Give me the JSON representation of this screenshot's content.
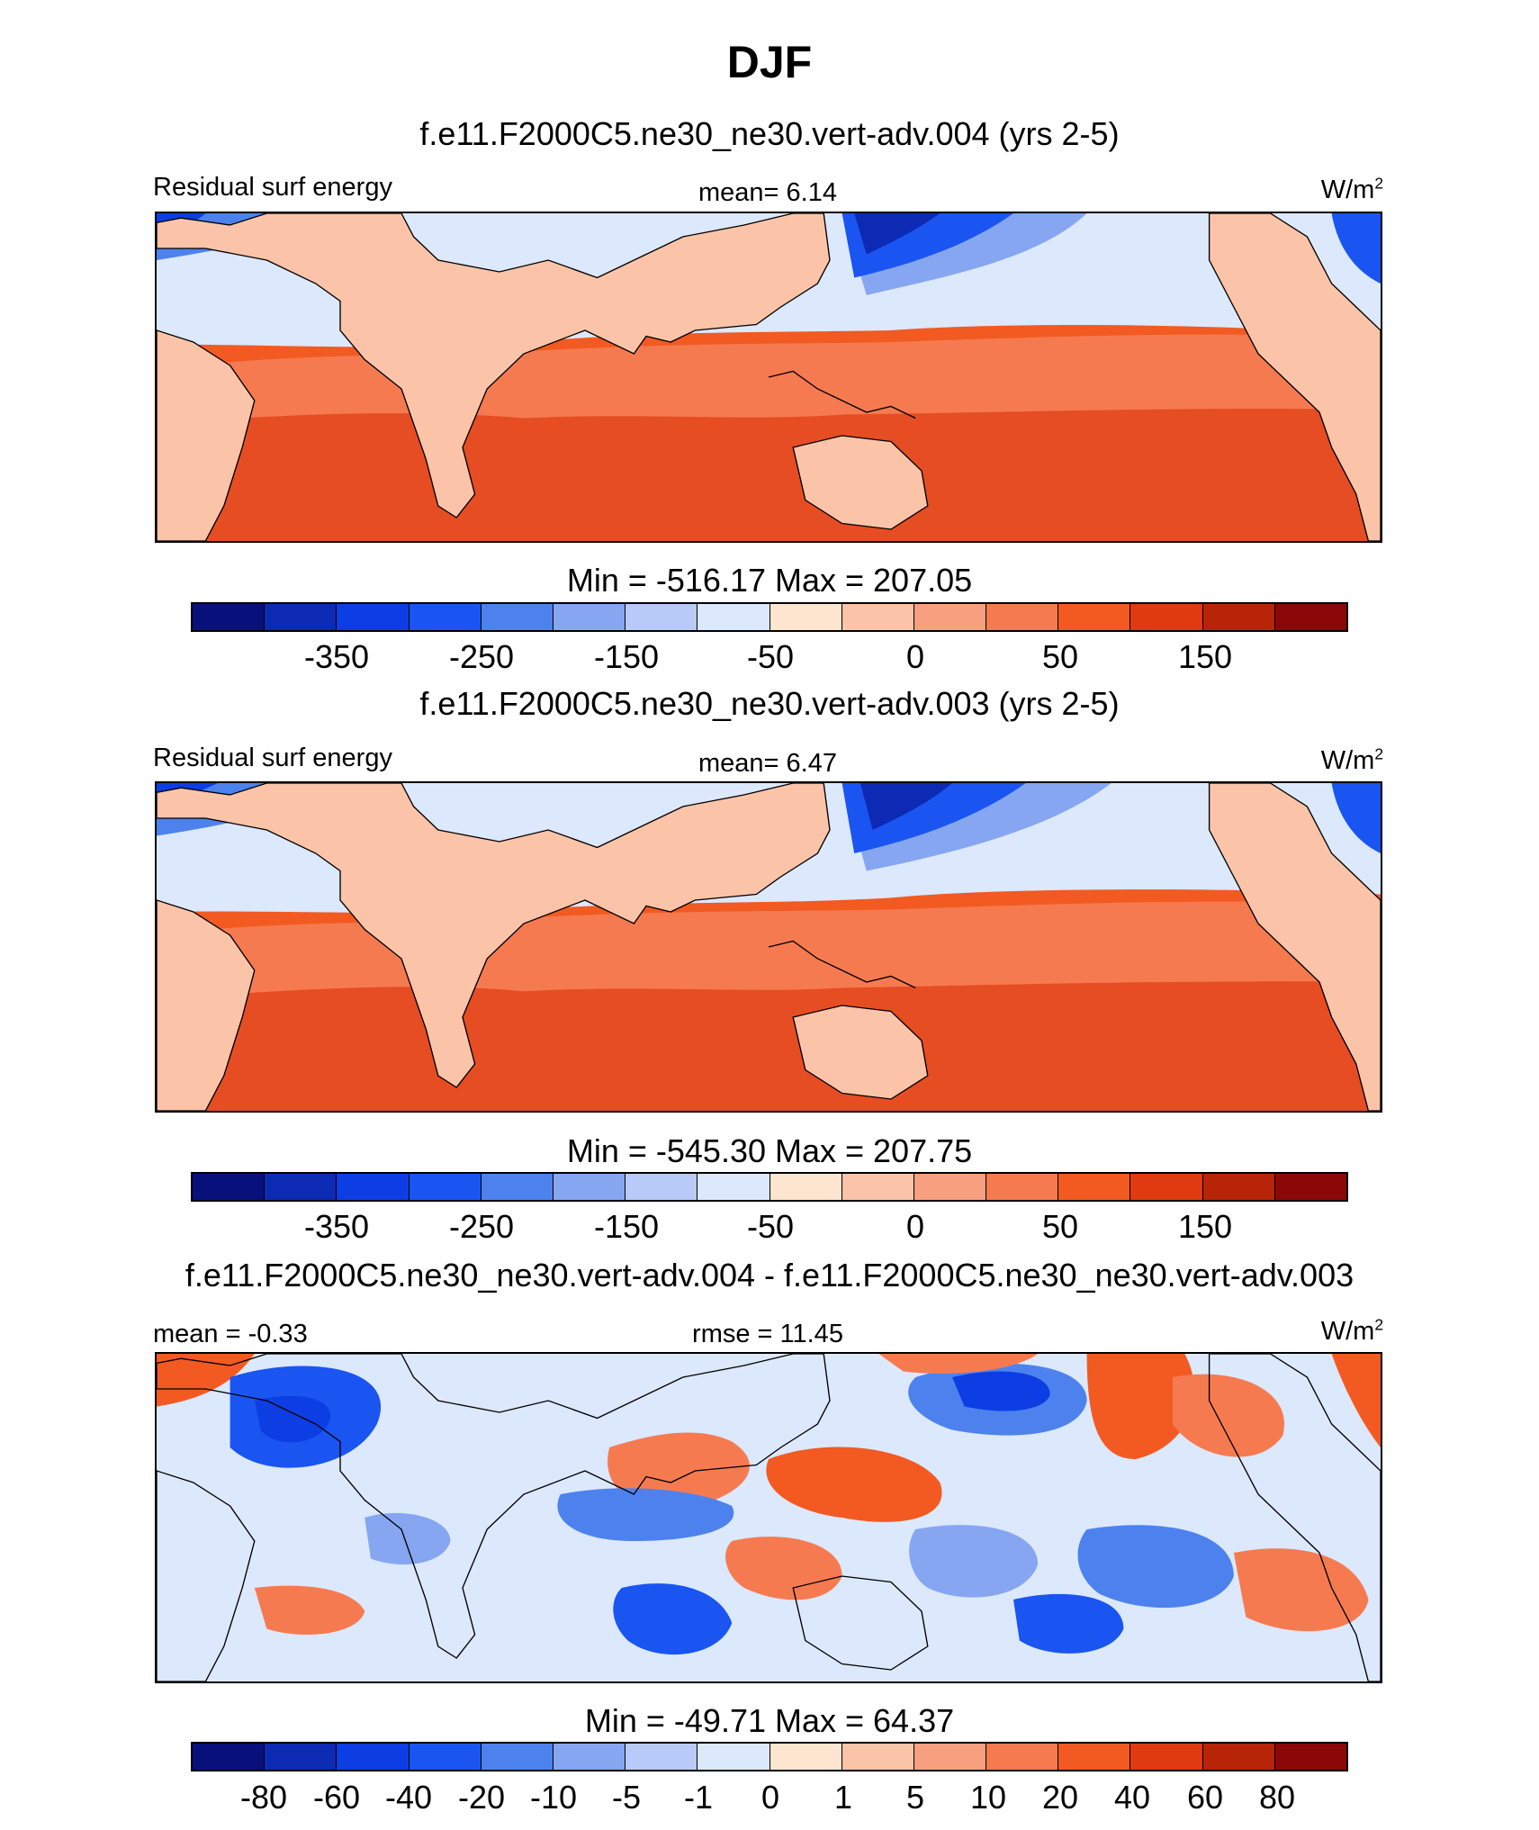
{
  "title": "DJF",
  "colors": [
    "#08107c",
    "#0c2ab4",
    "#0c3ee4",
    "#1a55f2",
    "#4d82ee",
    "#86a6f2",
    "#b8cbf8",
    "#dce8fc",
    "#fde5d0",
    "#fbc4a8",
    "#f7a080",
    "#f67a50",
    "#f25a22",
    "#df3a10",
    "#b82408",
    "#8c0808"
  ],
  "panels": [
    {
      "case_title": "f.e11.F2000C5.ne30_ne30.vert-adv.004 (yrs 2-5)",
      "left_label": "Residual surf energy",
      "center_label": "mean=   6.14",
      "units_base": "W/m",
      "units_exp": "2",
      "minmax": "Min = -516.17 Max = 207.05",
      "ticks": [
        "-350",
        "-250",
        "-150",
        "-50",
        "0",
        "50",
        "150"
      ]
    },
    {
      "case_title": "f.e11.F2000C5.ne30_ne30.vert-adv.003 (yrs 2-5)",
      "left_label": "Residual surf energy",
      "center_label": "mean=   6.47",
      "units_base": "W/m",
      "units_exp": "2",
      "minmax": "Min = -545.30 Max = 207.75",
      "ticks": [
        "-350",
        "-250",
        "-150",
        "-50",
        "0",
        "50",
        "150"
      ]
    },
    {
      "case_title": "f.e11.F2000C5.ne30_ne30.vert-adv.004 - f.e11.F2000C5.ne30_ne30.vert-adv.003",
      "left_label": "mean =  -0.33",
      "center_label": "rmse =  11.45",
      "units_base": "W/m",
      "units_exp": "2",
      "minmax": "Min = -49.71 Max =  64.37",
      "ticks": [
        "-80",
        "-60",
        "-40",
        "-20",
        "-10",
        "-5",
        "-1",
        "0",
        "1",
        "5",
        "10",
        "20",
        "40",
        "60",
        "80"
      ]
    }
  ]
}
